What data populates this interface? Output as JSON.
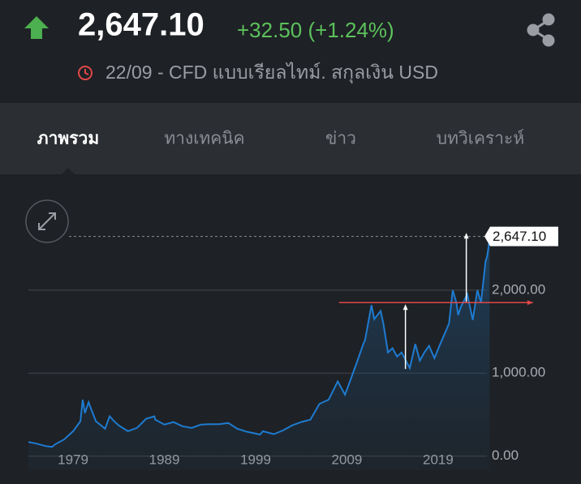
{
  "header": {
    "price": "2,647.10",
    "change": "+32.50 (+1.24%)",
    "info": "22/09 - CFD แบบเรียลไทม์. สกุลเงิน USD"
  },
  "tabs": [
    "ภาพรวม",
    "ทางเทคนิค",
    "ข่าว",
    "บทวิเคราะห์"
  ],
  "chart_data": {
    "type": "line",
    "x": [
      1974.1,
      1975,
      1976,
      1976.7,
      1977,
      1978,
      1979,
      1979.8,
      1980.05,
      1980.3,
      1980.7,
      1981,
      1981.5,
      1982.5,
      1983,
      1983.5,
      1984,
      1985,
      1986,
      1987,
      1987.9,
      1988,
      1989,
      1990,
      1991,
      1992,
      1993,
      1994,
      1995,
      1996,
      1997,
      1998,
      1999.5,
      1999.8,
      2001,
      2002,
      2003,
      2004,
      2005,
      2006,
      2007,
      2008,
      2008.8,
      2009.5,
      2010,
      2010.8,
      2011,
      2011.7,
      2012,
      2012.7,
      2013,
      2013.5,
      2014,
      2014.5,
      2015,
      2015.9,
      2016.5,
      2017,
      2017.5,
      2018,
      2018.6,
      2019,
      2019.5,
      2019.9,
      2020.2,
      2020.6,
      2021,
      2021.2,
      2021.5,
      2022.2,
      2022.8,
      2023.3,
      2023.7,
      2023.9,
      2024.2,
      2024.35,
      2024.5,
      2024.65
    ],
    "series": [
      {
        "color": "#1e7bd0",
        "values": [
          170,
          150,
          120,
          110,
          140,
          200,
          300,
          420,
          680,
          520,
          650,
          560,
          420,
          330,
          480,
          420,
          370,
          300,
          340,
          450,
          480,
          440,
          380,
          410,
          360,
          340,
          380,
          385,
          385,
          400,
          330,
          295,
          260,
          300,
          265,
          310,
          370,
          410,
          440,
          630,
          680,
          900,
          740,
          950,
          1100,
          1350,
          1400,
          1820,
          1650,
          1750,
          1600,
          1250,
          1300,
          1200,
          1250,
          1060,
          1350,
          1150,
          1250,
          1330,
          1180,
          1290,
          1420,
          1520,
          1600,
          2000,
          1850,
          1700,
          1800,
          1950,
          1640,
          2000,
          1850,
          2050,
          2350,
          2400,
          2500,
          2647.1
        ]
      }
    ],
    "xlim": [
      1974.1,
      2024.7
    ],
    "ylim": [
      -170,
      3230
    ],
    "xticks": [
      1979,
      1989,
      1999,
      2009,
      2019
    ],
    "yticks": [
      {
        "value": 0,
        "label": "0.00"
      },
      {
        "value": 1000,
        "label": "1,000.00"
      },
      {
        "value": 2000,
        "label": "2,000.00"
      }
    ],
    "grid": true,
    "last_label": {
      "value": 2647.1,
      "label": "2,647.10"
    },
    "hline": {
      "value": 1850,
      "x": [
        2008.15,
        2029.4
      ],
      "color": "#e04848"
    },
    "arrows": [
      {
        "x": 2015.42,
        "from": 1050,
        "to": 1830
      },
      {
        "x": 2022.09,
        "from": 1860,
        "to": 2690
      }
    ]
  }
}
